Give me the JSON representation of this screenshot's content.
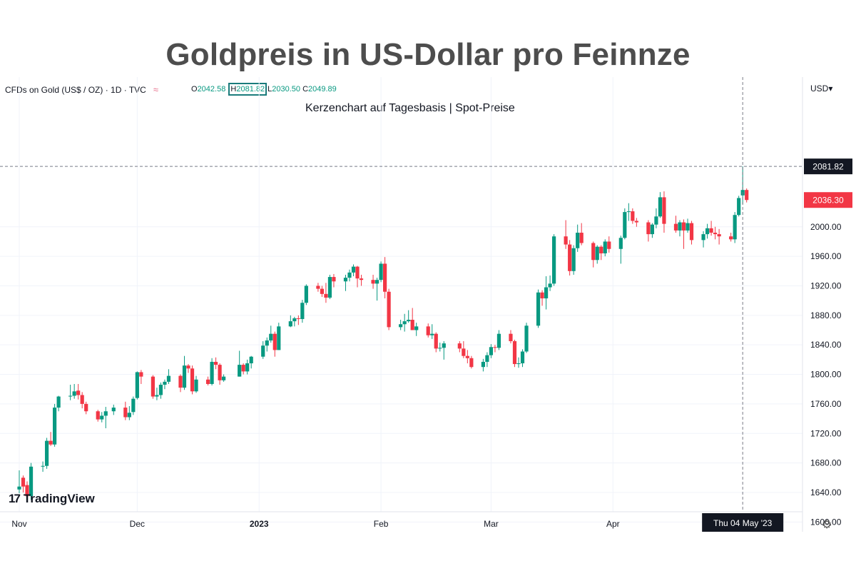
{
  "page": {
    "title": "Goldpreis in US-Dollar pro Feinnze",
    "subtitle": "Kerzenchart auf Tagesbasis | Spot-Preise",
    "symbol": "CFDs on Gold (US$ / OZ) · 1D · TVC",
    "currency_label": "USD",
    "branding": "TradingView",
    "ohlc": {
      "o_label": "O",
      "o": "2042.58",
      "h_label": "H",
      "h": "2081.82",
      "l_label": "L",
      "l": "2030.50",
      "c_label": "C",
      "c": "2049.89"
    },
    "crosshair_date_label": "Thu 04 May '23",
    "crosshair_price_label": "2081.82",
    "last_price_label": "2036.30"
  },
  "colors": {
    "up": "#089981",
    "down": "#f23645",
    "grid": "#f0f3fa",
    "axis_text": "#131722"
  },
  "chart_data": {
    "type": "candlestick",
    "title": "Goldpreis in US-Dollar pro Feinnze",
    "subtitle": "Kerzenchart auf Tagesbasis | Spot-Preise",
    "y_ticks": [
      1600,
      1640,
      1680,
      1720,
      1760,
      1800,
      1840,
      1880,
      1920,
      1960,
      2000
    ],
    "y_tick_labels": [
      "1600.00",
      "1640.00",
      "1680.00",
      "1720.00",
      "1760.00",
      "1800.00",
      "1840.00",
      "1880.00",
      "1920.00",
      "1960.00",
      "2000.00"
    ],
    "y_range": [
      1580,
      2140
    ],
    "x_labels": [
      {
        "label": "Nov",
        "date": "2022-11-01"
      },
      {
        "label": "Dec",
        "date": "2022-12-01"
      },
      {
        "label": "2023",
        "date": "2023-01-01"
      },
      {
        "label": "Feb",
        "date": "2023-02-01"
      },
      {
        "label": "Mar",
        "date": "2023-03-01"
      },
      {
        "label": "Apr",
        "date": "2023-04-01"
      }
    ],
    "x_range": [
      "2022-11-01",
      "2023-05-31"
    ],
    "crosshair": {
      "date": "2023-05-04",
      "price": 2081.82
    },
    "last_price": 2036.3,
    "grid": true,
    "candles": [
      {
        "d": "2022-11-01",
        "o": 1644,
        "h": 1670,
        "l": 1639,
        "c": 1648
      },
      {
        "d": "2022-11-02",
        "o": 1660,
        "h": 1663,
        "l": 1640,
        "c": 1648
      },
      {
        "d": "2022-11-03",
        "o": 1650,
        "h": 1655,
        "l": 1630,
        "c": 1635
      },
      {
        "d": "2022-11-04",
        "o": 1635,
        "h": 1680,
        "l": 1630,
        "c": 1675
      },
      {
        "d": "2022-11-07",
        "o": 1675,
        "h": 1682,
        "l": 1668,
        "c": 1676
      },
      {
        "d": "2022-11-08",
        "o": 1676,
        "h": 1714,
        "l": 1672,
        "c": 1710
      },
      {
        "d": "2022-11-09",
        "o": 1710,
        "h": 1722,
        "l": 1703,
        "c": 1705
      },
      {
        "d": "2022-11-10",
        "o": 1705,
        "h": 1760,
        "l": 1702,
        "c": 1755
      },
      {
        "d": "2022-11-11",
        "o": 1755,
        "h": 1771,
        "l": 1750,
        "c": 1770
      },
      {
        "d": "2022-11-14",
        "o": 1770,
        "h": 1786,
        "l": 1765,
        "c": 1771
      },
      {
        "d": "2022-11-15",
        "o": 1771,
        "h": 1787,
        "l": 1767,
        "c": 1777
      },
      {
        "d": "2022-11-16",
        "o": 1778,
        "h": 1787,
        "l": 1766,
        "c": 1772
      },
      {
        "d": "2022-11-17",
        "o": 1772,
        "h": 1776,
        "l": 1754,
        "c": 1760
      },
      {
        "d": "2022-11-18",
        "o": 1760,
        "h": 1763,
        "l": 1746,
        "c": 1750
      },
      {
        "d": "2022-11-21",
        "o": 1750,
        "h": 1752,
        "l": 1736,
        "c": 1739
      },
      {
        "d": "2022-11-22",
        "o": 1739,
        "h": 1749,
        "l": 1735,
        "c": 1744
      },
      {
        "d": "2022-11-23",
        "o": 1744,
        "h": 1756,
        "l": 1727,
        "c": 1750
      },
      {
        "d": "2022-11-25",
        "o": 1750,
        "h": 1759,
        "l": 1745,
        "c": 1755
      },
      {
        "d": "2022-11-28",
        "o": 1755,
        "h": 1763,
        "l": 1738,
        "c": 1742
      },
      {
        "d": "2022-11-29",
        "o": 1742,
        "h": 1757,
        "l": 1738,
        "c": 1748
      },
      {
        "d": "2022-11-30",
        "o": 1749,
        "h": 1770,
        "l": 1745,
        "c": 1767
      },
      {
        "d": "2022-12-01",
        "o": 1768,
        "h": 1804,
        "l": 1766,
        "c": 1803
      },
      {
        "d": "2022-12-02",
        "o": 1803,
        "h": 1806,
        "l": 1787,
        "c": 1797
      },
      {
        "d": "2022-12-05",
        "o": 1797,
        "h": 1799,
        "l": 1767,
        "c": 1770
      },
      {
        "d": "2022-12-06",
        "o": 1770,
        "h": 1782,
        "l": 1765,
        "c": 1772
      },
      {
        "d": "2022-12-07",
        "o": 1772,
        "h": 1789,
        "l": 1767,
        "c": 1786
      },
      {
        "d": "2022-12-08",
        "o": 1786,
        "h": 1793,
        "l": 1780,
        "c": 1790
      },
      {
        "d": "2022-12-09",
        "o": 1790,
        "h": 1807,
        "l": 1787,
        "c": 1798
      },
      {
        "d": "2022-12-12",
        "o": 1798,
        "h": 1800,
        "l": 1776,
        "c": 1782
      },
      {
        "d": "2022-12-13",
        "o": 1782,
        "h": 1825,
        "l": 1779,
        "c": 1812
      },
      {
        "d": "2022-12-14",
        "o": 1812,
        "h": 1814,
        "l": 1802,
        "c": 1808
      },
      {
        "d": "2022-12-15",
        "o": 1808,
        "h": 1812,
        "l": 1773,
        "c": 1777
      },
      {
        "d": "2022-12-16",
        "o": 1777,
        "h": 1798,
        "l": 1775,
        "c": 1793
      },
      {
        "d": "2022-12-19",
        "o": 1793,
        "h": 1797,
        "l": 1785,
        "c": 1787
      },
      {
        "d": "2022-12-20",
        "o": 1787,
        "h": 1822,
        "l": 1785,
        "c": 1817
      },
      {
        "d": "2022-12-21",
        "o": 1817,
        "h": 1823,
        "l": 1807,
        "c": 1813
      },
      {
        "d": "2022-12-22",
        "o": 1813,
        "h": 1815,
        "l": 1786,
        "c": 1792
      },
      {
        "d": "2022-12-23",
        "o": 1792,
        "h": 1800,
        "l": 1790,
        "c": 1797
      },
      {
        "d": "2022-12-27",
        "o": 1797,
        "h": 1832,
        "l": 1797,
        "c": 1813
      },
      {
        "d": "2022-12-28",
        "o": 1813,
        "h": 1815,
        "l": 1800,
        "c": 1804
      },
      {
        "d": "2022-12-29",
        "o": 1804,
        "h": 1820,
        "l": 1800,
        "c": 1815
      },
      {
        "d": "2022-12-30",
        "o": 1815,
        "h": 1825,
        "l": 1808,
        "c": 1824
      },
      {
        "d": "2023-01-02",
        "o": 1824,
        "h": 1845,
        "l": 1821,
        "c": 1839
      },
      {
        "d": "2023-01-03",
        "o": 1839,
        "h": 1850,
        "l": 1831,
        "c": 1846
      },
      {
        "d": "2023-01-04",
        "o": 1846,
        "h": 1866,
        "l": 1843,
        "c": 1855
      },
      {
        "d": "2023-01-05",
        "o": 1855,
        "h": 1858,
        "l": 1824,
        "c": 1833
      },
      {
        "d": "2023-01-06",
        "o": 1833,
        "h": 1870,
        "l": 1833,
        "c": 1865
      },
      {
        "d": "2023-01-09",
        "o": 1865,
        "h": 1880,
        "l": 1864,
        "c": 1872
      },
      {
        "d": "2023-01-10",
        "o": 1872,
        "h": 1878,
        "l": 1865,
        "c": 1876
      },
      {
        "d": "2023-01-11",
        "o": 1876,
        "h": 1880,
        "l": 1867,
        "c": 1875
      },
      {
        "d": "2023-01-12",
        "o": 1875,
        "h": 1901,
        "l": 1870,
        "c": 1897
      },
      {
        "d": "2023-01-13",
        "o": 1897,
        "h": 1922,
        "l": 1894,
        "c": 1920
      },
      {
        "d": "2023-01-16",
        "o": 1920,
        "h": 1924,
        "l": 1912,
        "c": 1916
      },
      {
        "d": "2023-01-17",
        "o": 1916,
        "h": 1920,
        "l": 1905,
        "c": 1909
      },
      {
        "d": "2023-01-18",
        "o": 1909,
        "h": 1924,
        "l": 1897,
        "c": 1904
      },
      {
        "d": "2023-01-19",
        "o": 1904,
        "h": 1935,
        "l": 1902,
        "c": 1932
      },
      {
        "d": "2023-01-20",
        "o": 1932,
        "h": 1936,
        "l": 1918,
        "c": 1926
      },
      {
        "d": "2023-01-23",
        "o": 1926,
        "h": 1935,
        "l": 1913,
        "c": 1931
      },
      {
        "d": "2023-01-24",
        "o": 1931,
        "h": 1942,
        "l": 1926,
        "c": 1938
      },
      {
        "d": "2023-01-25",
        "o": 1938,
        "h": 1949,
        "l": 1933,
        "c": 1946
      },
      {
        "d": "2023-01-26",
        "o": 1946,
        "h": 1947,
        "l": 1918,
        "c": 1930
      },
      {
        "d": "2023-01-27",
        "o": 1930,
        "h": 1935,
        "l": 1920,
        "c": 1928
      },
      {
        "d": "2023-01-30",
        "o": 1928,
        "h": 1935,
        "l": 1916,
        "c": 1923
      },
      {
        "d": "2023-01-31",
        "o": 1923,
        "h": 1931,
        "l": 1900,
        "c": 1928
      },
      {
        "d": "2023-02-01",
        "o": 1928,
        "h": 1953,
        "l": 1925,
        "c": 1950
      },
      {
        "d": "2023-02-02",
        "o": 1950,
        "h": 1959,
        "l": 1903,
        "c": 1912
      },
      {
        "d": "2023-02-03",
        "o": 1912,
        "h": 1916,
        "l": 1860,
        "c": 1864
      },
      {
        "d": "2023-02-06",
        "o": 1864,
        "h": 1874,
        "l": 1860,
        "c": 1868
      },
      {
        "d": "2023-02-07",
        "o": 1868,
        "h": 1882,
        "l": 1858,
        "c": 1872
      },
      {
        "d": "2023-02-08",
        "o": 1872,
        "h": 1887,
        "l": 1870,
        "c": 1874
      },
      {
        "d": "2023-02-09",
        "o": 1874,
        "h": 1890,
        "l": 1860,
        "c": 1860
      },
      {
        "d": "2023-02-10",
        "o": 1860,
        "h": 1870,
        "l": 1852,
        "c": 1865
      },
      {
        "d": "2023-02-13",
        "o": 1865,
        "h": 1869,
        "l": 1850,
        "c": 1853
      },
      {
        "d": "2023-02-14",
        "o": 1853,
        "h": 1868,
        "l": 1848,
        "c": 1855
      },
      {
        "d": "2023-02-15",
        "o": 1855,
        "h": 1857,
        "l": 1830,
        "c": 1835
      },
      {
        "d": "2023-02-16",
        "o": 1835,
        "h": 1843,
        "l": 1831,
        "c": 1836
      },
      {
        "d": "2023-02-17",
        "o": 1836,
        "h": 1845,
        "l": 1820,
        "c": 1842
      },
      {
        "d": "2023-02-21",
        "o": 1842,
        "h": 1845,
        "l": 1830,
        "c": 1835
      },
      {
        "d": "2023-02-22",
        "o": 1835,
        "h": 1845,
        "l": 1822,
        "c": 1825
      },
      {
        "d": "2023-02-23",
        "o": 1825,
        "h": 1833,
        "l": 1815,
        "c": 1822
      },
      {
        "d": "2023-02-24",
        "o": 1822,
        "h": 1825,
        "l": 1808,
        "c": 1810
      },
      {
        "d": "2023-02-27",
        "o": 1810,
        "h": 1821,
        "l": 1804,
        "c": 1817
      },
      {
        "d": "2023-02-28",
        "o": 1817,
        "h": 1830,
        "l": 1810,
        "c": 1826
      },
      {
        "d": "2023-03-01",
        "o": 1826,
        "h": 1841,
        "l": 1822,
        "c": 1837
      },
      {
        "d": "2023-03-02",
        "o": 1837,
        "h": 1840,
        "l": 1830,
        "c": 1836
      },
      {
        "d": "2023-03-03",
        "o": 1836,
        "h": 1860,
        "l": 1833,
        "c": 1855
      },
      {
        "d": "2023-03-06",
        "o": 1855,
        "h": 1860,
        "l": 1842,
        "c": 1845
      },
      {
        "d": "2023-03-07",
        "o": 1845,
        "h": 1847,
        "l": 1810,
        "c": 1814
      },
      {
        "d": "2023-03-08",
        "o": 1814,
        "h": 1823,
        "l": 1809,
        "c": 1815
      },
      {
        "d": "2023-03-09",
        "o": 1815,
        "h": 1834,
        "l": 1810,
        "c": 1831
      },
      {
        "d": "2023-03-10",
        "o": 1831,
        "h": 1870,
        "l": 1829,
        "c": 1866
      },
      {
        "d": "2023-03-13",
        "o": 1866,
        "h": 1915,
        "l": 1863,
        "c": 1911
      },
      {
        "d": "2023-03-14",
        "o": 1911,
        "h": 1914,
        "l": 1893,
        "c": 1903
      },
      {
        "d": "2023-03-15",
        "o": 1903,
        "h": 1933,
        "l": 1888,
        "c": 1918
      },
      {
        "d": "2023-03-16",
        "o": 1918,
        "h": 1934,
        "l": 1913,
        "c": 1923
      },
      {
        "d": "2023-03-17",
        "o": 1923,
        "h": 1990,
        "l": 1920,
        "c": 1987
      },
      {
        "d": "2023-03-20",
        "o": 1987,
        "h": 2009,
        "l": 1970,
        "c": 1976
      },
      {
        "d": "2023-03-21",
        "o": 1976,
        "h": 1982,
        "l": 1934,
        "c": 1940
      },
      {
        "d": "2023-03-22",
        "o": 1940,
        "h": 1975,
        "l": 1935,
        "c": 1971
      },
      {
        "d": "2023-03-23",
        "o": 1971,
        "h": 2003,
        "l": 1966,
        "c": 1992
      },
      {
        "d": "2023-03-24",
        "o": 1992,
        "h": 2005,
        "l": 1975,
        "c": 1978
      },
      {
        "d": "2023-03-27",
        "o": 1978,
        "h": 1980,
        "l": 1945,
        "c": 1955
      },
      {
        "d": "2023-03-28",
        "o": 1955,
        "h": 1975,
        "l": 1950,
        "c": 1973
      },
      {
        "d": "2023-03-29",
        "o": 1973,
        "h": 1975,
        "l": 1955,
        "c": 1964
      },
      {
        "d": "2023-03-30",
        "o": 1964,
        "h": 1983,
        "l": 1960,
        "c": 1980
      },
      {
        "d": "2023-03-31",
        "o": 1980,
        "h": 1987,
        "l": 1965,
        "c": 1970
      },
      {
        "d": "2023-04-03",
        "o": 1970,
        "h": 1988,
        "l": 1950,
        "c": 1985
      },
      {
        "d": "2023-04-04",
        "o": 1985,
        "h": 2025,
        "l": 1983,
        "c": 2020
      },
      {
        "d": "2023-04-05",
        "o": 2020,
        "h": 2032,
        "l": 2008,
        "c": 2021
      },
      {
        "d": "2023-04-06",
        "o": 2021,
        "h": 2025,
        "l": 2004,
        "c": 2008
      },
      {
        "d": "2023-04-07",
        "o": 2008,
        "h": 2012,
        "l": 2000,
        "c": 2006
      },
      {
        "d": "2023-04-10",
        "o": 2006,
        "h": 2009,
        "l": 1980,
        "c": 1990
      },
      {
        "d": "2023-04-11",
        "o": 1990,
        "h": 2005,
        "l": 1985,
        "c": 2003
      },
      {
        "d": "2023-04-12",
        "o": 2003,
        "h": 2025,
        "l": 1998,
        "c": 2014
      },
      {
        "d": "2023-04-13",
        "o": 2014,
        "h": 2047,
        "l": 2012,
        "c": 2040
      },
      {
        "d": "2023-04-14",
        "o": 2040,
        "h": 2048,
        "l": 1992,
        "c": 2004
      },
      {
        "d": "2023-04-17",
        "o": 2004,
        "h": 2015,
        "l": 1992,
        "c": 1995
      },
      {
        "d": "2023-04-18",
        "o": 1995,
        "h": 2009,
        "l": 1987,
        "c": 2006
      },
      {
        "d": "2023-04-19",
        "o": 2006,
        "h": 2010,
        "l": 1970,
        "c": 1995
      },
      {
        "d": "2023-04-20",
        "o": 1995,
        "h": 2011,
        "l": 1992,
        "c": 2005
      },
      {
        "d": "2023-04-21",
        "o": 2005,
        "h": 2008,
        "l": 1976,
        "c": 1982
      },
      {
        "d": "2023-04-24",
        "o": 1982,
        "h": 1994,
        "l": 1972,
        "c": 1990
      },
      {
        "d": "2023-04-25",
        "o": 1990,
        "h": 2004,
        "l": 1984,
        "c": 1998
      },
      {
        "d": "2023-04-26",
        "o": 1998,
        "h": 2008,
        "l": 1988,
        "c": 1992
      },
      {
        "d": "2023-04-27",
        "o": 1992,
        "h": 2000,
        "l": 1983,
        "c": 1990
      },
      {
        "d": "2023-04-28",
        "o": 1990,
        "h": 1997,
        "l": 1976,
        "c": 1987
      },
      {
        "d": "2023-05-01",
        "o": 1987,
        "h": 1992,
        "l": 1980,
        "c": 1983
      },
      {
        "d": "2023-05-02",
        "o": 1983,
        "h": 2020,
        "l": 1978,
        "c": 2016
      },
      {
        "d": "2023-05-03",
        "o": 2016,
        "h": 2042,
        "l": 2014,
        "c": 2039
      },
      {
        "d": "2023-05-04",
        "o": 2042.58,
        "h": 2081.82,
        "l": 2030.5,
        "c": 2049.89
      },
      {
        "d": "2023-05-05",
        "o": 2049.89,
        "h": 2052,
        "l": 2033,
        "c": 2036.3
      }
    ]
  }
}
